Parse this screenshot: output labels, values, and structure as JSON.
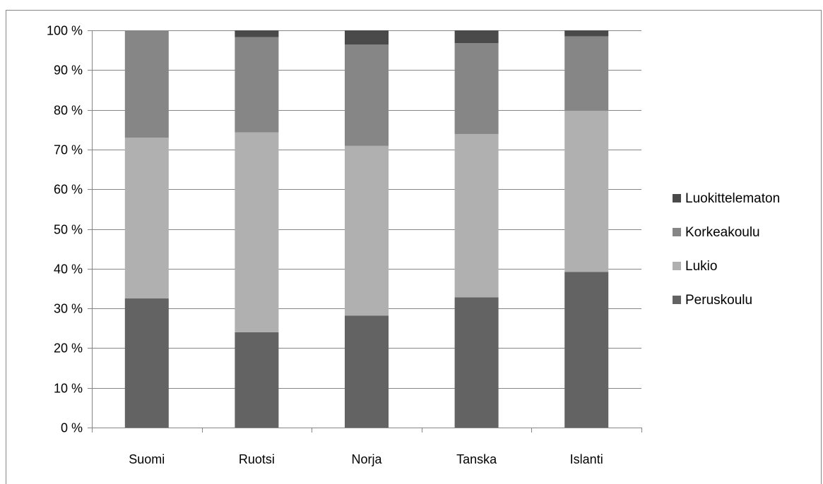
{
  "chart_data": {
    "type": "bar",
    "stacked": true,
    "percent": true,
    "categories": [
      "Suomi",
      "Ruotsi",
      "Norja",
      "Tanska",
      "Islanti"
    ],
    "series": [
      {
        "name": "Peruskoulu",
        "color": "#636363",
        "values": [
          32.5,
          24.0,
          28.2,
          32.8,
          39.2
        ]
      },
      {
        "name": "Lukio",
        "color": "#b0b0b0",
        "values": [
          40.5,
          50.3,
          42.7,
          41.1,
          40.5
        ]
      },
      {
        "name": "Korkeakoulu",
        "color": "#868686",
        "values": [
          27.0,
          24.0,
          25.5,
          22.9,
          18.8
        ]
      },
      {
        "name": "Luokittelematon",
        "color": "#4a4a4a",
        "values": [
          0.0,
          1.7,
          3.6,
          3.2,
          1.5
        ]
      }
    ],
    "yticks": [
      "0 %",
      "10 %",
      "20 %",
      "30 %",
      "40 %",
      "50 %",
      "60 %",
      "70 %",
      "80 %",
      "90 %",
      "100 %"
    ],
    "ylim": [
      0,
      100
    ],
    "grid": true,
    "legend": {
      "position": "right",
      "entries": [
        "Luokittelematon",
        "Korkeakoulu",
        "Lukio",
        "Peruskoulu"
      ]
    }
  }
}
